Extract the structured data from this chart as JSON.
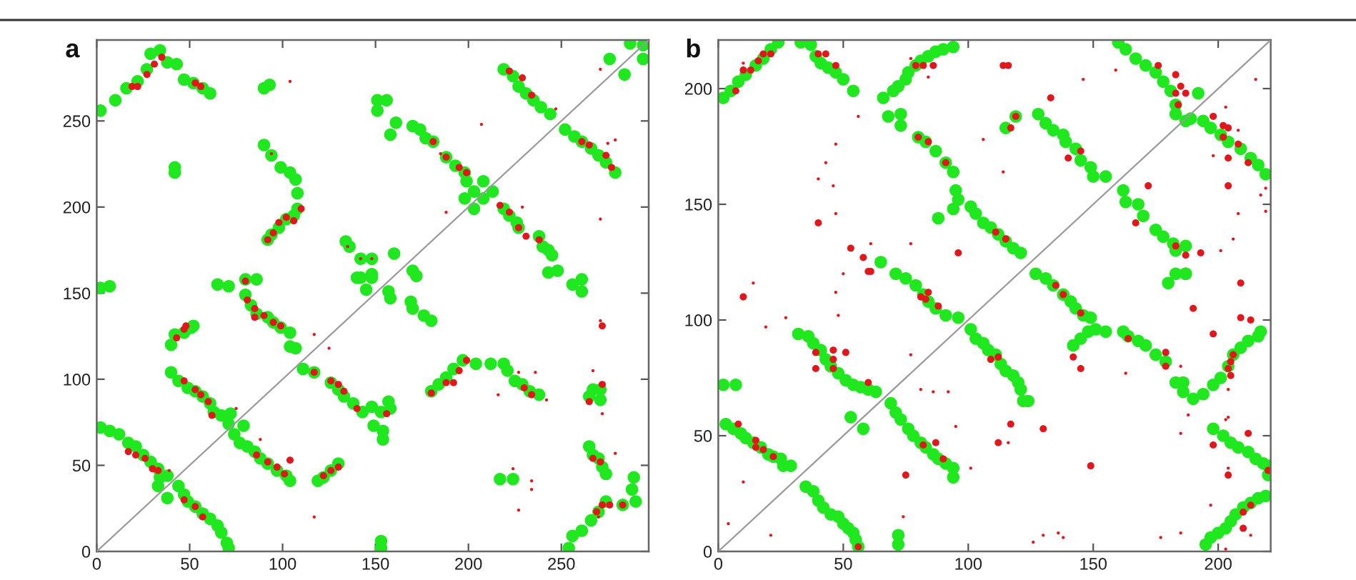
{
  "chart_data": [
    {
      "type": "scatter",
      "title": "a",
      "marker": "circle",
      "xlim": [
        0,
        297
      ],
      "ylim": [
        0,
        297
      ],
      "xticks": [
        0,
        50,
        100,
        150,
        200,
        250
      ],
      "yticks": [
        0,
        50,
        100,
        150,
        200,
        250
      ],
      "series": [
        {
          "color": "#1fe81f",
          "x": [
            2,
            10,
            16,
            22,
            27,
            29,
            34,
            38,
            43,
            47,
            52,
            57,
            61,
            90,
            93,
            42,
            42,
            90,
            94,
            99,
            104,
            107,
            108,
            108,
            106,
            102,
            98,
            94,
            92,
            151,
            156,
            151,
            161,
            158,
            170,
            174,
            177,
            181,
            188,
            193,
            198,
            199,
            198,
            203,
            208,
            213,
            203,
            208,
            219,
            222,
            226,
            227,
            238,
            240,
            243,
            245,
            219,
            224,
            227,
            231,
            235,
            239,
            244,
            252,
            257,
            261,
            266,
            270,
            274,
            279,
            287,
            294,
            276,
            284,
            294,
            134,
            136,
            142,
            148,
            142,
            148,
            160,
            170,
            172,
            243,
            248,
            261,
            2,
            7,
            65,
            71,
            80,
            86,
            80,
            83,
            86,
            92,
            95,
            99,
            104,
            104,
            107,
            40,
            42,
            47,
            51,
            52,
            40,
            44,
            49,
            53,
            57,
            61,
            63,
            67,
            71,
            72,
            79,
            74,
            77,
            81,
            85,
            88,
            92,
            97,
            102,
            104,
            111,
            117,
            126,
            130,
            133,
            138,
            143,
            148,
            153,
            149,
            154,
            154,
            157,
            158,
            119,
            122,
            126,
            130,
            145,
            140,
            148,
            157,
            158,
            169,
            170,
            176,
            180,
            180,
            184,
            188,
            192,
            197,
            204,
            212,
            219,
            221,
            225,
            229,
            233,
            238,
            217,
            224,
            265,
            267,
            271,
            271,
            265,
            267,
            270,
            272,
            274,
            289,
            288,
            290,
            283,
            274,
            270,
            266,
            261,
            256,
            254,
            256,
            261,
            153,
            153,
            2,
            7,
            12,
            17,
            21,
            25,
            29,
            33,
            34,
            33,
            38,
            44,
            38,
            47,
            49,
            53,
            57,
            61,
            65,
            67,
            70,
            71
          ],
          "values": [
            256,
            262,
            269,
            273,
            280,
            289,
            291,
            284,
            283,
            274,
            272,
            269,
            266,
            269,
            271,
            223,
            220,
            236,
            230,
            223,
            220,
            216,
            208,
            199,
            195,
            193,
            188,
            184,
            181,
            262,
            262,
            256,
            249,
            242,
            247,
            245,
            240,
            238,
            229,
            224,
            220,
            215,
            205,
            209,
            215,
            209,
            199,
            205,
            199,
            195,
            191,
            188,
            183,
            177,
            175,
            172,
            280,
            276,
            270,
            266,
            262,
            258,
            254,
            245,
            241,
            238,
            234,
            230,
            226,
            220,
            295,
            294,
            286,
            277,
            286,
            180,
            177,
            170,
            170,
            159,
            159,
            173,
            163,
            160,
            162,
            163,
            158,
            153,
            154,
            155,
            154,
            158,
            158,
            149,
            143,
            138,
            136,
            133,
            130,
            127,
            119,
            118,
            120,
            126,
            127,
            130,
            131,
            104,
            99,
            95,
            93,
            90,
            86,
            81,
            79,
            74,
            80,
            73,
            68,
            63,
            61,
            58,
            54,
            51,
            47,
            44,
            41,
            106,
            104,
            98,
            94,
            90,
            86,
            81,
            84,
            81,
            73,
            70,
            65,
            87,
            83,
            41,
            43,
            47,
            51,
            152,
            159,
            161,
            151,
            147,
            145,
            141,
            137,
            134,
            93,
            97,
            101,
            106,
            111,
            109,
            109,
            109,
            105,
            99,
            97,
            93,
            91,
            42,
            42,
            90,
            94,
            94,
            88,
            61,
            56,
            54,
            49,
            45,
            43,
            36,
            29,
            27,
            29,
            23,
            18,
            12,
            9,
            2,
            155,
            151,
            6,
            2,
            72,
            70,
            68,
            63,
            61,
            56,
            52,
            48,
            43,
            38,
            44,
            38,
            31,
            33,
            29,
            26,
            22,
            19,
            15,
            11,
            5,
            2
          ]
        },
        {
          "color": "#e3161b",
          "x": [
            19,
            22,
            27,
            31,
            35,
            53,
            56,
            92,
            95,
            98,
            102,
            106,
            110,
            181,
            188,
            195,
            199,
            217,
            222,
            227,
            231,
            238,
            222,
            229,
            234,
            261,
            265,
            274,
            277,
            80,
            81,
            85,
            85,
            90,
            95,
            99,
            43,
            47,
            48,
            47,
            53,
            56,
            60,
            62,
            86,
            92,
            97,
            101,
            104,
            117,
            126,
            130,
            133,
            140,
            156,
            122,
            126,
            130,
            180,
            188,
            192,
            195,
            199,
            230,
            234,
            265,
            272,
            272,
            267,
            271,
            283,
            272,
            276,
            269,
            17,
            21,
            26,
            30,
            33,
            47,
            53,
            57
          ],
          "values": [
            270,
            270,
            277,
            283,
            287,
            272,
            270,
            181,
            185,
            191,
            194,
            192,
            199,
            238,
            229,
            223,
            220,
            201,
            197,
            188,
            183,
            181,
            279,
            275,
            265,
            238,
            236,
            230,
            223,
            157,
            146,
            141,
            136,
            137,
            133,
            131,
            124,
            129,
            131,
            99,
            94,
            91,
            87,
            79,
            56,
            52,
            49,
            45,
            53,
            104,
            99,
            97,
            93,
            83,
            80,
            44,
            47,
            49,
            92,
            98,
            98,
            105,
            111,
            95,
            91,
            87,
            97,
            131,
            54,
            52,
            27,
            27,
            27,
            23,
            58,
            56,
            54,
            48,
            47,
            30,
            26,
            20
          ]
        },
        {
          "color": "#e3161b",
          "x": [
            104,
            207,
            185,
            188,
            229,
            247,
            271,
            271,
            275,
            279,
            94,
            117,
            125,
            75,
            117,
            216,
            227,
            236,
            242,
            224,
            234,
            234,
            227,
            279,
            271,
            267,
            272,
            39,
            88,
            135,
            142,
            148,
            270
          ],
          "values": [
            273,
            248,
            231,
            197,
            200,
            257,
            280,
            193,
            237,
            239,
            231,
            126,
            118,
            83,
            20,
            91,
            104,
            104,
            88,
            48,
            41,
            36,
            24,
            57,
            134,
            105,
            80,
            47,
            65,
            177,
            170,
            170,
            20
          ]
        },
        {
          "type": "line",
          "marker": "none",
          "color": "#9a9a9a",
          "x": [
            0,
            297
          ],
          "values": [
            0,
            297
          ]
        }
      ]
    },
    {
      "type": "scatter",
      "title": "b",
      "marker": "circle",
      "xlim": [
        0,
        221
      ],
      "ylim": [
        0,
        221
      ],
      "xticks": [
        0,
        50,
        100,
        150,
        200
      ],
      "yticks": [
        0,
        50,
        100,
        150,
        200
      ],
      "series": [
        {
          "color": "#1fe81f",
          "x": [
            2,
            5,
            8,
            11,
            15,
            18,
            21,
            24,
            33,
            37,
            39,
            41,
            44,
            47,
            50,
            54,
            66,
            68,
            73,
            73,
            70,
            72,
            75,
            76,
            79,
            81,
            84,
            87,
            90,
            94,
            80,
            83,
            87,
            91,
            94,
            95,
            96,
            94,
            88,
            101,
            103,
            106,
            109,
            112,
            115,
            118,
            121,
            115,
            119,
            128,
            131,
            134,
            138,
            139,
            143,
            145,
            149,
            150,
            155,
            160,
            163,
            167,
            171,
            175,
            178,
            181,
            183,
            183,
            187,
            192,
            189,
            194,
            197,
            201,
            204,
            209,
            213,
            216,
            219,
            162,
            163,
            168,
            170,
            175,
            178,
            182,
            183,
            187,
            187,
            65,
            3,
            6,
            9,
            11,
            14,
            17,
            20,
            22,
            25,
            26,
            29,
            2,
            7,
            32,
            36,
            38,
            41,
            43,
            45,
            48,
            51,
            54,
            57,
            60,
            63,
            53,
            58,
            69,
            71,
            73,
            76,
            78,
            81,
            83,
            86,
            88,
            91,
            94,
            94,
            72,
            72,
            35,
            38,
            40,
            42,
            45,
            48,
            50,
            52,
            54,
            55,
            56,
            71,
            75,
            79,
            82,
            84,
            87,
            91,
            96,
            101,
            103,
            106,
            108,
            111,
            113,
            115,
            118,
            120,
            121,
            122,
            124,
            127,
            131,
            134,
            138,
            141,
            143,
            146,
            149,
            142,
            145,
            148,
            151,
            155,
            162,
            164,
            168,
            171,
            175,
            179,
            183,
            186,
            186,
            190,
            194,
            198,
            201,
            204,
            206,
            209,
            212,
            216,
            217,
            180,
            183,
            187,
            198,
            202,
            205,
            208,
            212,
            215,
            218,
            220,
            220,
            195,
            197,
            200,
            203,
            205,
            207,
            210,
            213,
            216,
            219
          ],
          "values": [
            196,
            199,
            203,
            206,
            210,
            213,
            217,
            220,
            220,
            219,
            214,
            211,
            209,
            207,
            204,
            199,
            196,
            188,
            189,
            184,
            199,
            201,
            204,
            207,
            210,
            212,
            214,
            216,
            217,
            218,
            179,
            177,
            173,
            168,
            164,
            156,
            152,
            148,
            144,
            149,
            146,
            142,
            140,
            137,
            134,
            131,
            129,
            183,
            188,
            189,
            185,
            182,
            180,
            177,
            174,
            169,
            166,
            162,
            162,
            220,
            217,
            213,
            210,
            207,
            203,
            199,
            193,
            189,
            186,
            198,
            187,
            186,
            183,
            180,
            177,
            174,
            170,
            167,
            163,
            156,
            151,
            150,
            145,
            139,
            136,
            133,
            130,
            132,
            120,
            125,
            55,
            53,
            51,
            49,
            47,
            45,
            42,
            41,
            40,
            37,
            37,
            72,
            72,
            94,
            93,
            90,
            87,
            83,
            80,
            77,
            74,
            72,
            71,
            70,
            69,
            58,
            53,
            64,
            60,
            57,
            53,
            50,
            47,
            45,
            42,
            40,
            38,
            36,
            32,
            7,
            3,
            28,
            26,
            22,
            19,
            16,
            15,
            12,
            10,
            8,
            5,
            2,
            120,
            118,
            115,
            111,
            108,
            105,
            102,
            101,
            96,
            92,
            90,
            87,
            85,
            81,
            78,
            76,
            73,
            70,
            65,
            65,
            120,
            118,
            115,
            111,
            108,
            105,
            102,
            101,
            89,
            92,
            95,
            96,
            95,
            95,
            93,
            91,
            89,
            85,
            82,
            73,
            73,
            69,
            66,
            68,
            72,
            75,
            80,
            85,
            88,
            91,
            93,
            95,
            116,
            120,
            120,
            53,
            50,
            47,
            45,
            43,
            40,
            38,
            37,
            33,
            3,
            6,
            8,
            10,
            13,
            16,
            19,
            21,
            23,
            24
          ]
        },
        {
          "color": "#e3161b",
          "x": [
            7,
            10,
            13,
            16,
            18,
            21,
            40,
            43,
            47,
            79,
            82,
            86,
            114,
            116,
            80,
            84,
            91,
            111,
            115,
            119,
            117,
            140,
            145,
            133,
            176,
            183,
            185,
            183,
            187,
            184,
            198,
            202,
            204,
            202,
            208,
            212,
            204,
            167,
            183,
            187,
            193,
            172,
            204,
            40,
            53,
            58,
            61,
            96,
            8,
            15,
            15,
            18,
            22,
            39,
            46,
            46,
            51,
            39,
            46,
            60,
            82,
            87,
            90,
            75,
            56,
            81,
            84,
            83,
            88,
            60,
            109,
            112,
            135,
            138,
            145,
            142,
            145,
            164,
            179,
            179,
            206,
            205,
            204,
            205,
            209,
            190,
            198,
            209,
            213,
            198,
            212,
            220,
            204,
            210,
            213,
            210,
            10,
            117,
            112,
            130,
            149
          ],
          "values": [
            199,
            208,
            208,
            212,
            215,
            215,
            215,
            215,
            210,
            210,
            210,
            210,
            210,
            210,
            179,
            177,
            168,
            138,
            135,
            188,
            183,
            170,
            173,
            196,
            210,
            206,
            201,
            198,
            198,
            193,
            188,
            184,
            183,
            179,
            176,
            168,
            170,
            142,
            132,
            128,
            129,
            158,
            158,
            142,
            131,
            127,
            121,
            129,
            55,
            48,
            45,
            44,
            41,
            86,
            87,
            83,
            86,
            79,
            79,
            73,
            46,
            47,
            40,
            33,
            2,
            110,
            112,
            109,
            106,
            121,
            83,
            84,
            115,
            111,
            103,
            84,
            79,
            92,
            86,
            80,
            85,
            82,
            79,
            76,
            101,
            105,
            94,
            116,
            100,
            46,
            51,
            35,
            33,
            17,
            20,
            10,
            110,
            55,
            47,
            53,
            37
          ]
        },
        {
          "color": "#e3161b",
          "x": [
            10,
            56,
            47,
            43,
            40,
            46,
            47,
            61,
            50,
            77,
            77,
            84,
            106,
            114,
            146,
            159,
            203,
            198,
            208,
            215,
            219,
            217,
            208,
            206,
            201,
            219,
            14,
            19,
            27,
            47,
            48,
            4,
            21,
            10,
            77,
            81,
            86,
            92,
            95,
            74,
            101,
            116,
            126,
            130,
            136,
            138,
            163,
            177,
            185,
            185,
            188,
            185,
            197,
            203,
            204,
            204,
            204,
            213,
            203
          ],
          "values": [
            211,
            188,
            176,
            168,
            161,
            158,
            146,
            133,
            120,
            133,
            213,
            205,
            178,
            164,
            204,
            208,
            192,
            171,
            182,
            204,
            157,
            154,
            146,
            135,
            130,
            147,
            116,
            97,
            101,
            112,
            102,
            12,
            7,
            30,
            85,
            70,
            69,
            69,
            54,
            15,
            36,
            47,
            4,
            7,
            8,
            6,
            77,
            6,
            8,
            80,
            59,
            51,
            20,
            57,
            58,
            36,
            70,
            7,
            1
          ]
        },
        {
          "type": "line",
          "marker": "none",
          "color": "#9a9a9a",
          "x": [
            0,
            221
          ],
          "values": [
            0,
            221
          ]
        }
      ]
    }
  ]
}
